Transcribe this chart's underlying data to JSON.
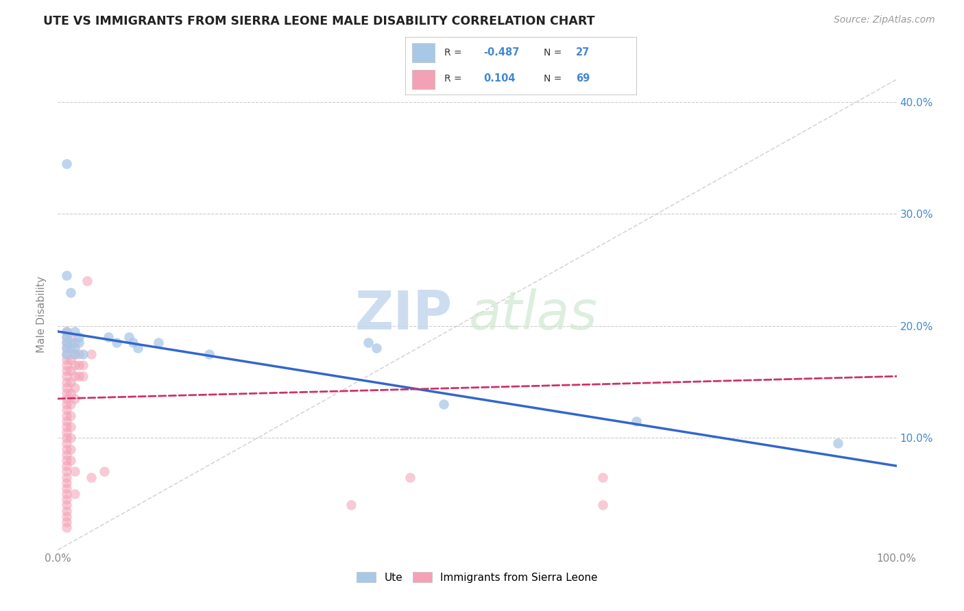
{
  "title": "UTE VS IMMIGRANTS FROM SIERRA LEONE MALE DISABILITY CORRELATION CHART",
  "source": "Source: ZipAtlas.com",
  "ylabel": "Male Disability",
  "watermark_zip": "ZIP",
  "watermark_atlas": "atlas",
  "legend_labels": [
    "Ute",
    "Immigrants from Sierra Leone"
  ],
  "ute_R": -0.487,
  "ute_N": 27,
  "imm_R": 0.104,
  "imm_N": 69,
  "xlim": [
    0.0,
    1.0
  ],
  "ylim": [
    0.0,
    0.42
  ],
  "xtick_vals": [
    0.0,
    1.0
  ],
  "xtick_labels": [
    "0.0%",
    "100.0%"
  ],
  "ytick_vals": [
    0.1,
    0.2,
    0.3,
    0.4
  ],
  "ytick_labels": [
    "10.0%",
    "20.0%",
    "30.0%",
    "40.0%"
  ],
  "ute_color": "#a8c8e8",
  "imm_color": "#f4a0b5",
  "ute_line_color": "#3366cc",
  "imm_line_color": "#cc3366",
  "grid_color": "#cccccc",
  "ref_line_color": "#cccccc",
  "background_color": "#ffffff",
  "title_color": "#222222",
  "axis_color": "#888888",
  "tick_color": "#4488cc",
  "ute_scatter": [
    [
      0.01,
      0.345
    ],
    [
      0.01,
      0.245
    ],
    [
      0.015,
      0.23
    ],
    [
      0.01,
      0.195
    ],
    [
      0.01,
      0.19
    ],
    [
      0.01,
      0.185
    ],
    [
      0.01,
      0.18
    ],
    [
      0.01,
      0.175
    ],
    [
      0.02,
      0.195
    ],
    [
      0.015,
      0.185
    ],
    [
      0.02,
      0.18
    ],
    [
      0.025,
      0.19
    ],
    [
      0.025,
      0.185
    ],
    [
      0.02,
      0.175
    ],
    [
      0.03,
      0.175
    ],
    [
      0.06,
      0.19
    ],
    [
      0.07,
      0.185
    ],
    [
      0.085,
      0.19
    ],
    [
      0.09,
      0.185
    ],
    [
      0.095,
      0.18
    ],
    [
      0.12,
      0.185
    ],
    [
      0.18,
      0.175
    ],
    [
      0.37,
      0.185
    ],
    [
      0.38,
      0.18
    ],
    [
      0.46,
      0.13
    ],
    [
      0.69,
      0.115
    ],
    [
      0.93,
      0.095
    ]
  ],
  "imm_scatter": [
    [
      0.01,
      0.195
    ],
    [
      0.01,
      0.19
    ],
    [
      0.01,
      0.185
    ],
    [
      0.01,
      0.18
    ],
    [
      0.01,
      0.175
    ],
    [
      0.01,
      0.17
    ],
    [
      0.01,
      0.165
    ],
    [
      0.01,
      0.16
    ],
    [
      0.01,
      0.155
    ],
    [
      0.01,
      0.15
    ],
    [
      0.01,
      0.145
    ],
    [
      0.01,
      0.14
    ],
    [
      0.01,
      0.135
    ],
    [
      0.01,
      0.13
    ],
    [
      0.01,
      0.125
    ],
    [
      0.01,
      0.12
    ],
    [
      0.01,
      0.115
    ],
    [
      0.01,
      0.11
    ],
    [
      0.01,
      0.105
    ],
    [
      0.01,
      0.1
    ],
    [
      0.01,
      0.095
    ],
    [
      0.01,
      0.09
    ],
    [
      0.01,
      0.085
    ],
    [
      0.01,
      0.08
    ],
    [
      0.01,
      0.075
    ],
    [
      0.01,
      0.07
    ],
    [
      0.01,
      0.065
    ],
    [
      0.01,
      0.06
    ],
    [
      0.01,
      0.055
    ],
    [
      0.01,
      0.05
    ],
    [
      0.01,
      0.045
    ],
    [
      0.01,
      0.04
    ],
    [
      0.01,
      0.035
    ],
    [
      0.01,
      0.03
    ],
    [
      0.01,
      0.025
    ],
    [
      0.01,
      0.02
    ],
    [
      0.015,
      0.19
    ],
    [
      0.015,
      0.18
    ],
    [
      0.015,
      0.17
    ],
    [
      0.015,
      0.16
    ],
    [
      0.015,
      0.15
    ],
    [
      0.015,
      0.14
    ],
    [
      0.015,
      0.13
    ],
    [
      0.015,
      0.12
    ],
    [
      0.015,
      0.11
    ],
    [
      0.015,
      0.1
    ],
    [
      0.015,
      0.09
    ],
    [
      0.015,
      0.08
    ],
    [
      0.02,
      0.185
    ],
    [
      0.02,
      0.175
    ],
    [
      0.02,
      0.165
    ],
    [
      0.02,
      0.155
    ],
    [
      0.02,
      0.145
    ],
    [
      0.02,
      0.135
    ],
    [
      0.02,
      0.07
    ],
    [
      0.025,
      0.175
    ],
    [
      0.025,
      0.165
    ],
    [
      0.025,
      0.155
    ],
    [
      0.03,
      0.165
    ],
    [
      0.03,
      0.155
    ],
    [
      0.035,
      0.24
    ],
    [
      0.04,
      0.175
    ],
    [
      0.04,
      0.065
    ],
    [
      0.055,
      0.07
    ],
    [
      0.42,
      0.065
    ],
    [
      0.65,
      0.065
    ],
    [
      0.02,
      0.05
    ],
    [
      0.35,
      0.04
    ],
    [
      0.65,
      0.04
    ]
  ],
  "ute_line_x0": 0.0,
  "ute_line_y0": 0.195,
  "ute_line_x1": 1.0,
  "ute_line_y1": 0.075,
  "imm_line_x0": 0.0,
  "imm_line_y0": 0.135,
  "imm_line_x1": 1.0,
  "imm_line_y1": 0.155
}
